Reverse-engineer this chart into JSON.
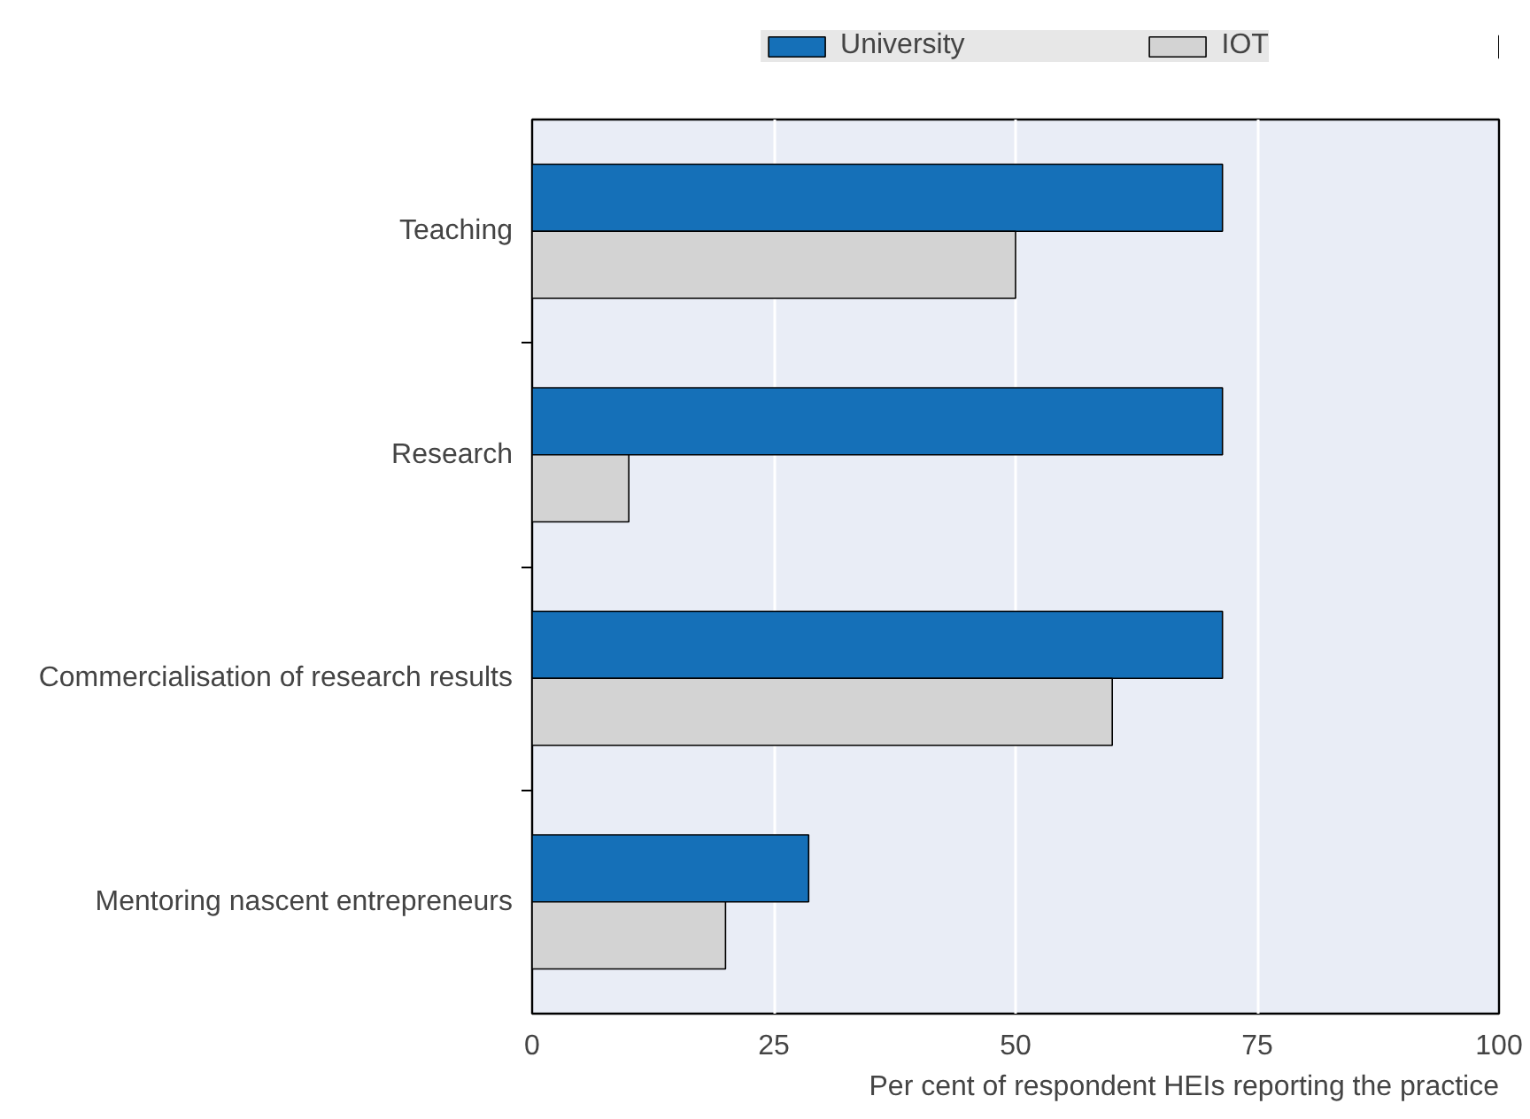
{
  "chart_data": {
    "type": "bar",
    "orientation": "horizontal",
    "categories": [
      "Teaching",
      "Research",
      "Commercialisation of research results",
      "Mentoring nascent entrepreneurs"
    ],
    "series": [
      {
        "name": "University",
        "color": "#1570b8",
        "values": [
          71.4,
          71.4,
          71.4,
          28.6
        ]
      },
      {
        "name": "IOT",
        "color": "#d3d3d3",
        "values": [
          50,
          10,
          60,
          20
        ]
      }
    ],
    "xlabel": "Per cent of respondent HEIs reporting the practice",
    "xlim": [
      0,
      100
    ],
    "xticks": [
      0,
      25,
      50,
      75,
      100
    ],
    "grid": "x",
    "legend": "top"
  }
}
